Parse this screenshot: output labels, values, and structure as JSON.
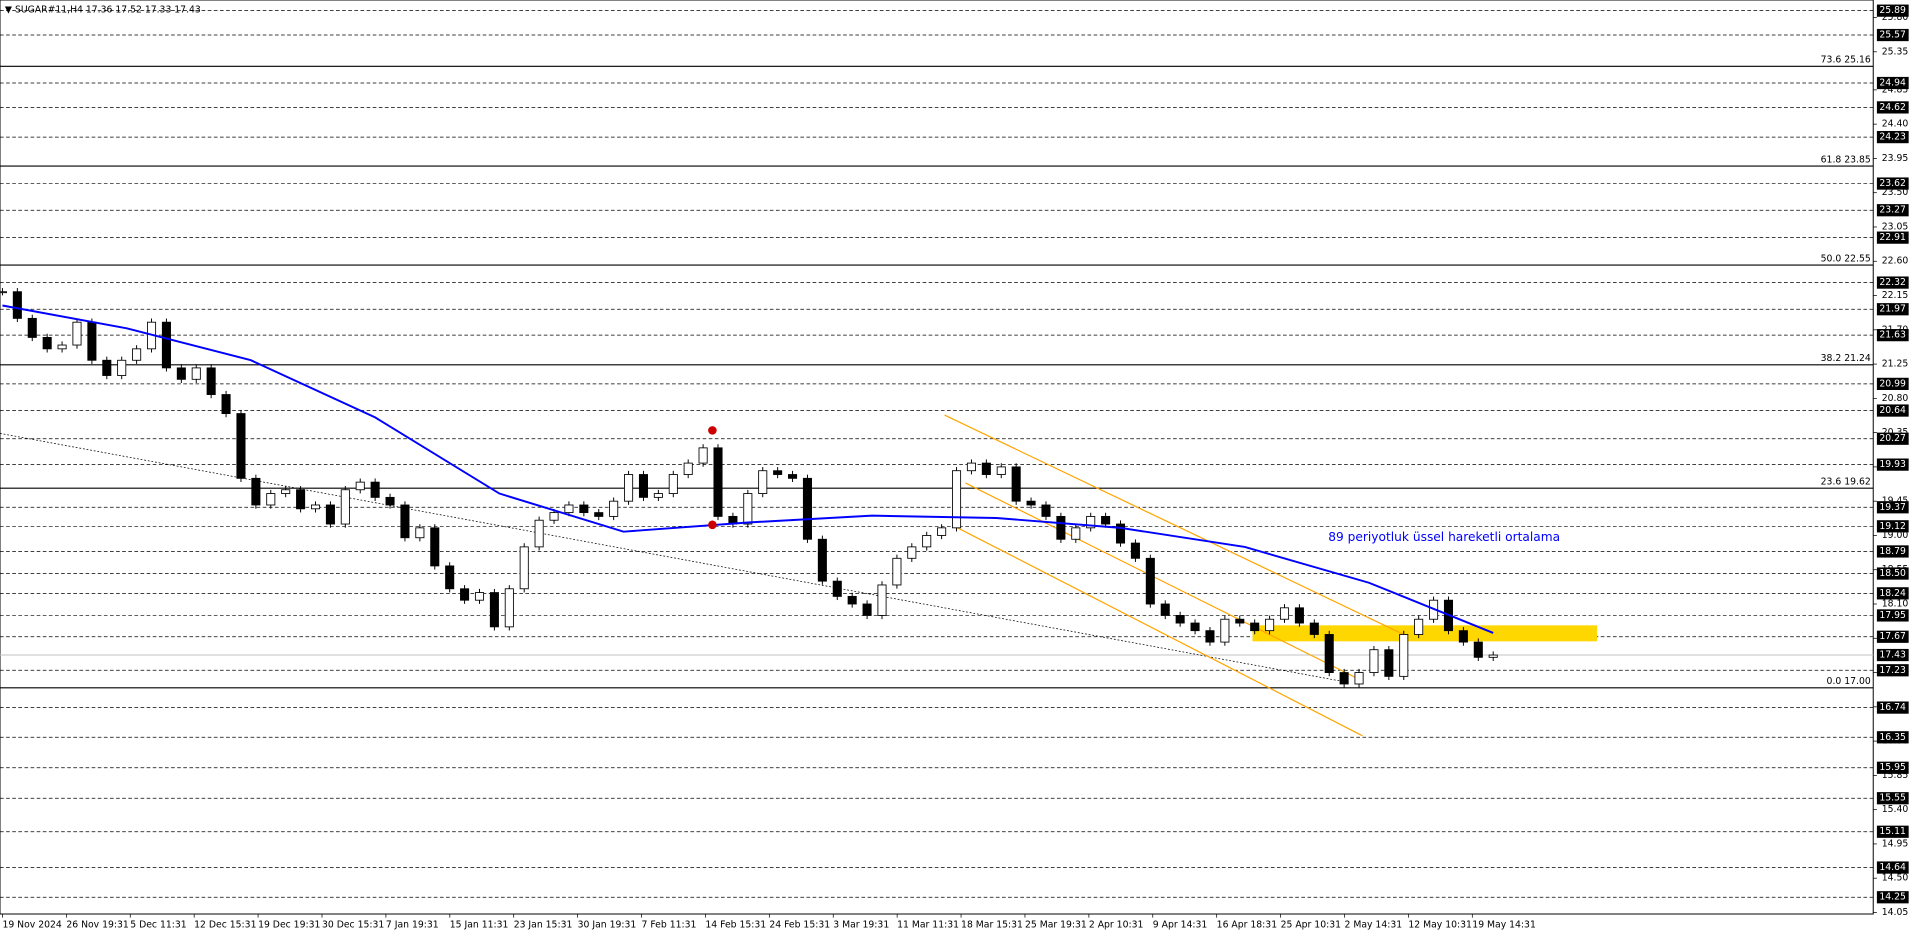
{
  "chart_data": {
    "type": "candlestick",
    "title": "▼ SUGAR#11,H4  17.36 17.52 17.33 17.43",
    "annotation": "89 periyotluk üssel hareketli ortalama",
    "categories": [
      "19 Nov 2024",
      "26 Nov 19:31",
      "5 Dec 11:31",
      "12 Dec 15:31",
      "19 Dec 19:31",
      "30 Dec 15:31",
      "7 Jan 19:31",
      "15 Jan 11:31",
      "23 Jan 15:31",
      "30 Jan 19:31",
      "7 Feb 11:31",
      "14 Feb 15:31",
      "24 Feb 15:31",
      "3 Mar 19:31",
      "11 Mar 11:31",
      "18 Mar 15:31",
      "25 Mar 19:31",
      "2 Apr 10:31",
      "9 Apr 14:31",
      "16 Apr 18:31",
      "25 Apr 10:31",
      "2 May 14:31",
      "12 May 10:31",
      "19 May 14:31"
    ],
    "close": [
      22.2,
      21.85,
      21.6,
      21.45,
      21.5,
      21.8,
      21.3,
      21.1,
      21.3,
      21.45,
      21.8,
      21.2,
      21.05,
      21.2,
      20.85,
      20.6,
      19.75,
      19.4,
      19.55,
      19.6,
      19.35,
      19.4,
      19.15,
      19.6,
      19.7,
      19.5,
      19.4,
      18.97,
      19.1,
      18.6,
      18.3,
      18.15,
      18.25,
      17.8,
      18.3,
      18.85,
      19.2,
      19.3,
      19.4,
      19.3,
      19.25,
      19.45,
      19.8,
      19.5,
      19.55,
      19.8,
      19.95,
      20.15,
      19.25,
      19.15,
      19.55,
      19.85,
      19.8,
      19.75,
      18.95,
      18.4,
      18.2,
      18.1,
      17.95,
      18.35,
      18.7,
      18.85,
      19.0,
      19.1,
      19.85,
      19.95,
      19.8,
      19.9,
      19.45,
      19.4,
      19.25,
      18.95,
      19.1,
      19.25,
      19.15,
      18.9,
      18.7,
      18.1,
      17.95,
      17.85,
      17.75,
      17.6,
      17.9,
      17.85,
      17.75,
      17.9,
      18.05,
      17.85,
      17.7,
      17.2,
      17.05,
      17.2,
      17.5,
      17.15,
      17.7,
      17.9,
      18.15,
      17.75,
      17.6,
      17.4,
      17.43
    ],
    "ema": {
      "color": "#0000ff",
      "values": [
        22.02,
        21.72,
        21.3,
        20.55,
        19.55,
        19.05,
        19.17,
        19.26,
        19.23,
        19.1,
        18.85,
        18.38,
        17.72
      ]
    },
    "trendline": {
      "color": "#000000",
      "values": [
        20.34,
        17.08
      ]
    },
    "channel": {
      "color": "#ffa500",
      "lines": [
        [
          20.58,
          17.69
        ],
        [
          19.69,
          17.13
        ],
        [
          19.13,
          16.37
        ]
      ]
    },
    "zone": {
      "color": "#ffd700",
      "values": [
        17.61,
        17.82
      ]
    },
    "markers": {
      "color": "#cc0000",
      "values": [
        20.38,
        19.14
      ]
    },
    "last": 17.43,
    "ylim": [
      14.03,
      26.03
    ],
    "yticks": [
      {
        "value": 25.8,
        "label": "25.80"
      },
      25.35,
      24.85,
      {
        "value": 24.4,
        "label": "24.40"
      },
      23.95,
      {
        "value": 23.5,
        "label": "23.50"
      },
      23.05,
      {
        "value": 22.6,
        "label": "22.60"
      },
      22.15,
      {
        "value": 21.7,
        "label": "21.70"
      },
      21.25,
      {
        "value": 20.8,
        "label": "20.80"
      },
      20.35,
      {
        "value": 19.9,
        "label": "19.90"
      },
      19.45,
      {
        "value": 19,
        "label": "19.00"
      },
      18.55,
      {
        "value": 18.1,
        "label": "18.10"
      },
      17.65,
      {
        "value": 17.2,
        "label": "17.20"
      },
      16.75,
      {
        "value": 16.3,
        "label": "16.30"
      },
      15.85,
      {
        "value": 15.4,
        "label": "15.40"
      },
      14.95,
      {
        "value": 14.5,
        "label": "14.50"
      },
      14.05
    ],
    "levels": [
      25.89,
      25.57,
      24.94,
      24.62,
      24.23,
      23.62,
      23.27,
      22.91,
      22.32,
      21.97,
      21.63,
      20.99,
      20.64,
      20.27,
      19.93,
      19.37,
      19.12,
      18.79,
      {
        "value": 18.5,
        "label": "18.50"
      },
      18.24,
      17.95,
      17.67,
      17.43,
      17.23,
      16.74,
      16.35,
      15.95,
      15.55,
      15.11,
      14.64,
      14.25
    ],
    "fib_levels": [
      {
        "value": 25.16,
        "label": "73.6 25.16"
      },
      {
        "value": 23.85,
        "label": "61.8 23.85"
      },
      {
        "value": 22.55,
        "label": "50.0 22.55"
      },
      {
        "value": 21.24,
        "label": "38.2 21.24"
      },
      {
        "value": 19.62,
        "label": "23.6 19.62"
      },
      {
        "value": 17,
        "label": "0.0 17.00"
      }
    ]
  }
}
